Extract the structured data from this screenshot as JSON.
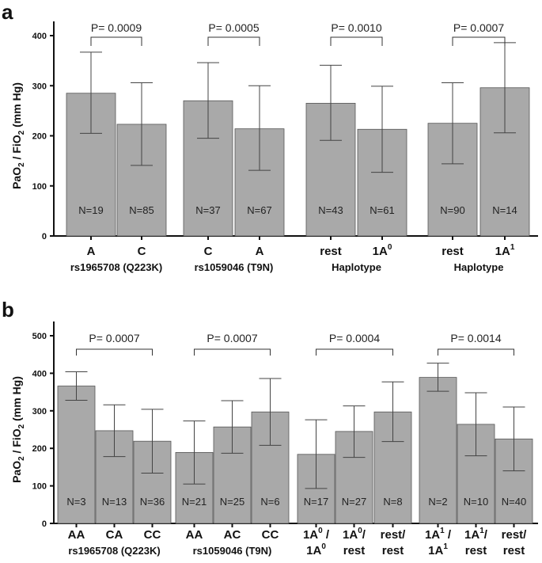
{
  "chart_data": [
    {
      "panel": "a",
      "type": "bar",
      "ylabel": "PaO2 / FiO2 (mm Hg)",
      "ylabel_parts": {
        "a": "PaO",
        "sub1": "2",
        "b": " / FiO",
        "sub2": "2",
        "c": " (mm Hg)"
      },
      "ylim": [
        0,
        400
      ],
      "yticks": [
        0,
        100,
        200,
        300,
        400
      ],
      "groups": [
        {
          "label": "rs1965708",
          "sublabel": "(Q223K)",
          "p": "P= 0.0009",
          "bars": [
            {
              "cat": "A",
              "value": 285,
              "err_low": 205,
              "err_high": 367,
              "n": "N=19"
            },
            {
              "cat": "C",
              "value": 223,
              "err_low": 141,
              "err_high": 306,
              "n": "N=85"
            }
          ]
        },
        {
          "label": "rs1059046",
          "sublabel": "(T9N)",
          "p": "P= 0.0005",
          "bars": [
            {
              "cat": "C",
              "value": 270,
              "err_low": 195,
              "err_high": 346,
              "n": "N=37"
            },
            {
              "cat": "A",
              "value": 214,
              "err_low": 131,
              "err_high": 300,
              "n": "N=67"
            }
          ]
        },
        {
          "label": "Haplotype",
          "sublabel": "",
          "p": "P= 0.0010",
          "bars": [
            {
              "cat": "rest",
              "value": 265,
              "err_low": 191,
              "err_high": 341,
              "n": "N=43"
            },
            {
              "cat": "1A",
              "sup": "0",
              "value": 213,
              "err_low": 127,
              "err_high": 299,
              "n": "N=61"
            }
          ]
        },
        {
          "label": "Haplotype",
          "sublabel": "",
          "p": "P= 0.0007",
          "bars": [
            {
              "cat": "rest",
              "value": 225,
              "err_low": 144,
              "err_high": 306,
              "n": "N=90"
            },
            {
              "cat": "1A",
              "sup": "1",
              "value": 296,
              "err_low": 206,
              "err_high": 386,
              "n": "N=14"
            }
          ]
        }
      ]
    },
    {
      "panel": "b",
      "type": "bar",
      "ylabel": "PaO2 / FiO2 (mm Hg)",
      "ylabel_parts": {
        "a": "PaO",
        "sub1": "2",
        "b": " / FiO",
        "sub2": "2",
        "c": " (mm Hg)"
      },
      "ylim": [
        0,
        500
      ],
      "yticks": [
        0,
        100,
        200,
        300,
        400,
        500
      ],
      "groups": [
        {
          "label": "rs1965708",
          "sublabel": "(Q223K)",
          "p": "P= 0.0007",
          "bars": [
            {
              "cat": "AA",
              "value": 366,
              "err_low": 328,
              "err_high": 404,
              "n": "N=3"
            },
            {
              "cat": "CA",
              "value": 247,
              "err_low": 178,
              "err_high": 316,
              "n": "N=13"
            },
            {
              "cat": "CC",
              "value": 219,
              "err_low": 134,
              "err_high": 304,
              "n": "N=36"
            }
          ]
        },
        {
          "label": "rs1059046",
          "sublabel": "(T9N)",
          "p": "P= 0.0007",
          "bars": [
            {
              "cat": "AA",
              "value": 189,
              "err_low": 105,
              "err_high": 273,
              "n": "N=21"
            },
            {
              "cat": "AC",
              "value": 257,
              "err_low": 187,
              "err_high": 327,
              "n": "N=25"
            },
            {
              "cat": "CC",
              "value": 297,
              "err_low": 208,
              "err_high": 386,
              "n": "N=6"
            }
          ]
        },
        {
          "label": "",
          "sublabel": "",
          "p": "P= 0.0004",
          "bars": [
            {
              "cat_line1": "1A",
              "sup1": "0",
              "cat_line1_suffix": " /",
              "cat_line2": "1A",
              "sup2": "0",
              "cat_line2_suffix": "",
              "value": 184,
              "err_low": 93,
              "err_high": 276,
              "n": "N=17"
            },
            {
              "cat_line1": "1A",
              "sup1": "0",
              "cat_line1_suffix": "/",
              "cat_line2": "rest",
              "sup2": "",
              "cat_line2_suffix": "",
              "value": 245,
              "err_low": 176,
              "err_high": 313,
              "n": "N=27"
            },
            {
              "cat_line1": "rest/",
              "sup1": "",
              "cat_line1_suffix": "",
              "cat_line2": "rest",
              "sup2": "",
              "cat_line2_suffix": "",
              "value": 297,
              "err_low": 218,
              "err_high": 377,
              "n": "N=8"
            }
          ]
        },
        {
          "label": "",
          "sublabel": "",
          "p": "P= 0.0014",
          "bars": [
            {
              "cat_line1": "1A",
              "sup1": "1",
              "cat_line1_suffix": " /",
              "cat_line2": "1A",
              "sup2": "1",
              "cat_line2_suffix": "",
              "value": 389,
              "err_low": 352,
              "err_high": 427,
              "n": "N=2"
            },
            {
              "cat_line1": "1A",
              "sup1": "1",
              "cat_line1_suffix": "/",
              "cat_line2": "rest",
              "sup2": "",
              "cat_line2_suffix": "",
              "value": 264,
              "err_low": 180,
              "err_high": 348,
              "n": "N=10"
            },
            {
              "cat_line1": "rest/",
              "sup1": "",
              "cat_line1_suffix": "",
              "cat_line2": "rest",
              "sup2": "",
              "cat_line2_suffix": "",
              "value": 225,
              "err_low": 140,
              "err_high": 310,
              "n": "N=40"
            }
          ]
        }
      ]
    }
  ]
}
